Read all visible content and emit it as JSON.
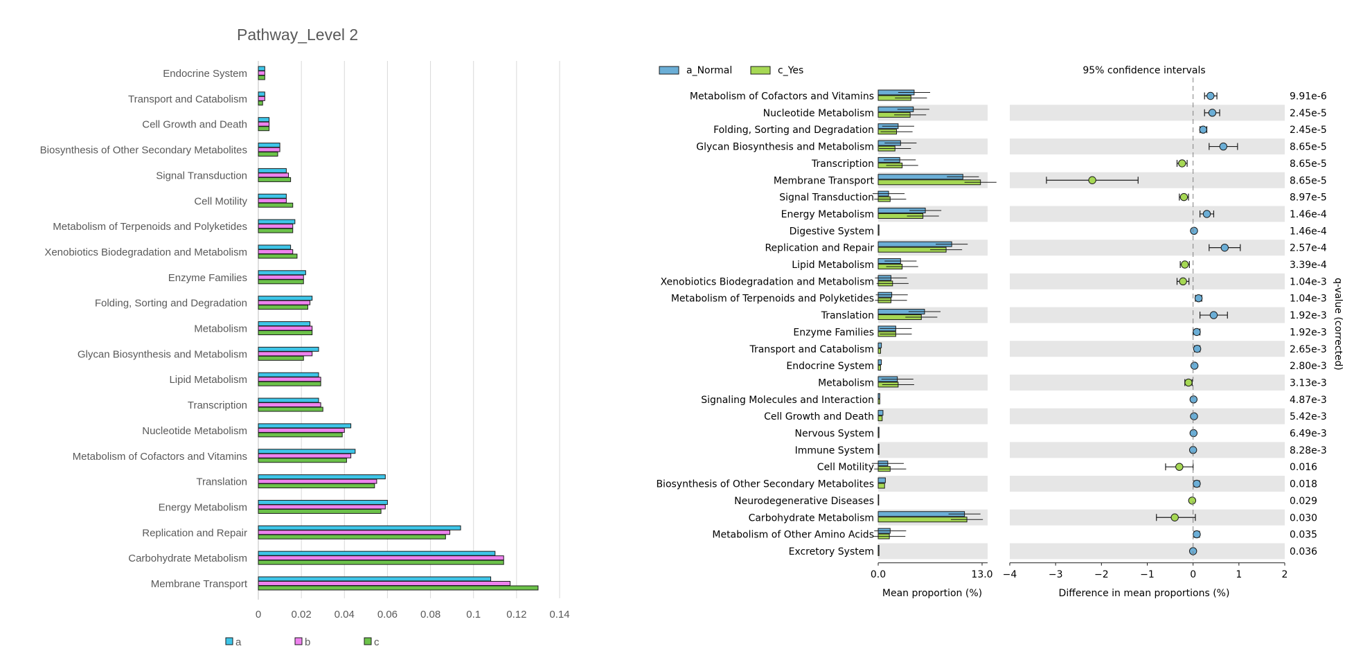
{
  "chart_data": [
    {
      "type": "bar",
      "orientation": "horizontal",
      "title": "Pathway_Level 2",
      "categories": [
        "Endocrine System",
        "Transport and Catabolism",
        "Cell Growth and Death",
        "Biosynthesis of Other Secondary Metabolites",
        "Signal Transduction",
        "Cell Motility",
        "Metabolism of Terpenoids and Polyketides",
        "Xenobiotics Biodegradation and Metabolism",
        "Enzyme Families",
        "Folding, Sorting and Degradation",
        "Metabolism",
        "Glycan Biosynthesis and Metabolism",
        "Lipid Metabolism",
        "Transcription",
        "Nucleotide Metabolism",
        "Metabolism of Cofactors and Vitamins",
        "Translation",
        "Energy Metabolism",
        "Replication and Repair",
        "Carbohydrate Metabolism",
        "Membrane Transport"
      ],
      "series": [
        {
          "name": "a",
          "color": "#3ec5e8",
          "values": [
            0.003,
            0.003,
            0.005,
            0.01,
            0.013,
            0.013,
            0.017,
            0.015,
            0.022,
            0.025,
            0.024,
            0.028,
            0.028,
            0.028,
            0.043,
            0.045,
            0.059,
            0.06,
            0.094,
            0.11,
            0.108
          ]
        },
        {
          "name": "b",
          "color": "#ee82ee",
          "values": [
            0.003,
            0.003,
            0.005,
            0.01,
            0.014,
            0.013,
            0.016,
            0.016,
            0.021,
            0.024,
            0.025,
            0.025,
            0.029,
            0.029,
            0.04,
            0.043,
            0.055,
            0.059,
            0.089,
            0.114,
            0.117
          ]
        },
        {
          "name": "c",
          "color": "#6cc24a",
          "values": [
            0.003,
            0.002,
            0.005,
            0.009,
            0.015,
            0.016,
            0.016,
            0.018,
            0.021,
            0.023,
            0.025,
            0.021,
            0.029,
            0.03,
            0.039,
            0.041,
            0.054,
            0.057,
            0.087,
            0.114,
            0.13
          ]
        }
      ],
      "xlim": [
        0,
        0.14
      ],
      "xticks": [
        "0",
        "0.02",
        "0.04",
        "0.06",
        "0.08",
        "0.1",
        "0.12",
        "0.14"
      ],
      "grid": true,
      "legend_position": "bottom"
    },
    {
      "type": "extended_error_bar",
      "legend": [
        {
          "name": "a_Normal",
          "color": "#6baed6"
        },
        {
          "name": "c_Yes",
          "color": "#a6d854"
        }
      ],
      "ci_title": "95% confidence intervals",
      "categories": [
        "Metabolism of Cofactors and Vitamins",
        "Nucleotide Metabolism",
        "Folding, Sorting and Degradation",
        "Glycan Biosynthesis and Metabolism",
        "Transcription",
        "Membrane Transport",
        "Signal Transduction",
        "Energy Metabolism",
        "Digestive System",
        "Replication and Repair",
        "Lipid Metabolism",
        "Xenobiotics Biodegradation and Metabolism",
        "Metabolism of Terpenoids and Polyketides",
        "Translation",
        "Enzyme Families",
        "Transport and Catabolism",
        "Endocrine System",
        "Metabolism",
        "Signaling Molecules and Interaction",
        "Cell Growth and Death",
        "Nervous System",
        "Immune System",
        "Cell Motility",
        "Biosynthesis of Other Secondary Metabolites",
        "Neurodegenerative Diseases",
        "Carbohydrate Metabolism",
        "Metabolism of Other Amino Acids",
        "Excretory System"
      ],
      "mean_a": [
        4.5,
        4.4,
        2.5,
        2.8,
        2.7,
        10.6,
        1.3,
        5.9,
        0.1,
        9.2,
        2.8,
        1.6,
        1.7,
        5.8,
        2.2,
        0.4,
        0.4,
        2.4,
        0.2,
        0.6,
        0.1,
        0.1,
        1.2,
        0.9,
        0.05,
        10.8,
        1.5,
        0.1
      ],
      "mean_b": [
        4.1,
        4.0,
        2.3,
        2.1,
        3.0,
        12.8,
        1.5,
        5.6,
        0.1,
        8.5,
        3.0,
        1.8,
        1.6,
        5.4,
        2.2,
        0.3,
        0.3,
        2.5,
        0.2,
        0.5,
        0.1,
        0.1,
        1.5,
        0.8,
        0.05,
        11.1,
        1.4,
        0.1
      ],
      "mean_prop_xlim": [
        0,
        13.0
      ],
      "mean_prop_xticks": [
        "0.0",
        "13.0"
      ],
      "mean_prop_xlabel": "Mean proportion (%)",
      "diff": [
        0.38,
        0.42,
        0.22,
        0.66,
        -0.24,
        -2.2,
        -0.2,
        0.3,
        0.02,
        0.69,
        -0.18,
        -0.22,
        0.12,
        0.45,
        0.08,
        0.09,
        0.03,
        -0.1,
        0.01,
        0.02,
        0.01,
        0.0,
        -0.3,
        0.08,
        -0.02,
        -0.4,
        0.08,
        0.0
      ],
      "ci_low": [
        0.25,
        0.25,
        0.15,
        0.35,
        -0.35,
        -3.2,
        -0.3,
        0.15,
        0.0,
        0.35,
        -0.28,
        -0.35,
        0.05,
        0.15,
        0.0,
        0.03,
        0.0,
        -0.18,
        0.0,
        0.0,
        0.0,
        0.0,
        -0.6,
        0.02,
        -0.04,
        -0.8,
        0.02,
        0.0
      ],
      "ci_high": [
        0.52,
        0.58,
        0.3,
        0.97,
        -0.13,
        -1.2,
        -0.1,
        0.45,
        0.04,
        1.03,
        -0.08,
        -0.09,
        0.19,
        0.75,
        0.15,
        0.15,
        0.06,
        -0.02,
        0.02,
        0.05,
        0.02,
        0.0,
        0.0,
        0.14,
        0.0,
        0.05,
        0.14,
        0.0
      ],
      "diff_xlim": [
        -4,
        2
      ],
      "diff_xticks": [
        "−4",
        "−3",
        "−2",
        "−1",
        "0",
        "1",
        "2"
      ],
      "diff_xlabel": "Difference in mean proportions (%)",
      "qvalues": [
        "9.91e-6",
        "2.45e-5",
        "2.45e-5",
        "8.65e-5",
        "8.65e-5",
        "8.65e-5",
        "8.97e-5",
        "1.46e-4",
        "1.46e-4",
        "2.57e-4",
        "3.39e-4",
        "1.04e-3",
        "1.04e-3",
        "1.92e-3",
        "1.92e-3",
        "2.65e-3",
        "2.80e-3",
        "3.13e-3",
        "4.87e-3",
        "5.42e-3",
        "6.49e-3",
        "8.28e-3",
        "0.016",
        "0.018",
        "0.029",
        "0.030",
        "0.035",
        "0.036"
      ],
      "qvalue_label": "q-value (corrected)"
    }
  ]
}
